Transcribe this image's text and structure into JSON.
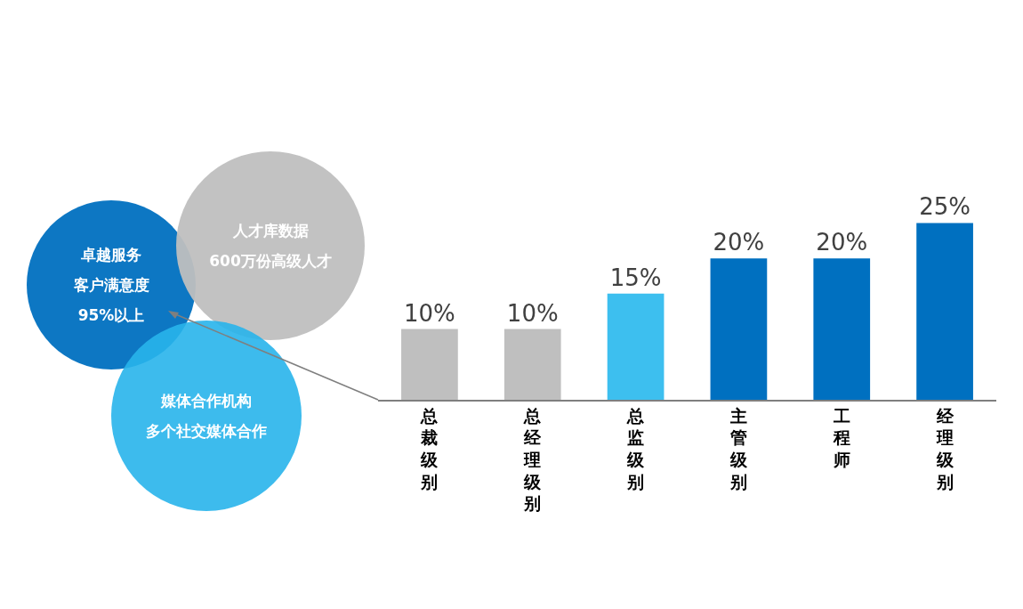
{
  "chart_data": {
    "type": "bar",
    "categories": [
      "总裁级别",
      "总经理级别",
      "总监级别",
      "主管级别",
      "工程师",
      "经理级别"
    ],
    "values": [
      10,
      10,
      15,
      20,
      20,
      25
    ],
    "value_labels": [
      "10%",
      "10%",
      "15%",
      "20%",
      "20%",
      "25%"
    ],
    "colors": [
      "#bfbfbf",
      "#bfbfbf",
      "#3dbfef",
      "#0070c0",
      "#0070c0",
      "#0070c0"
    ],
    "annotations": [
      "卓越服务",
      "客户满意度",
      "95%以上",
      "人才库数据",
      "600万份高级人才",
      "媒体合作机构",
      "多个社交媒体合作"
    ],
    "legend": false
  }
}
